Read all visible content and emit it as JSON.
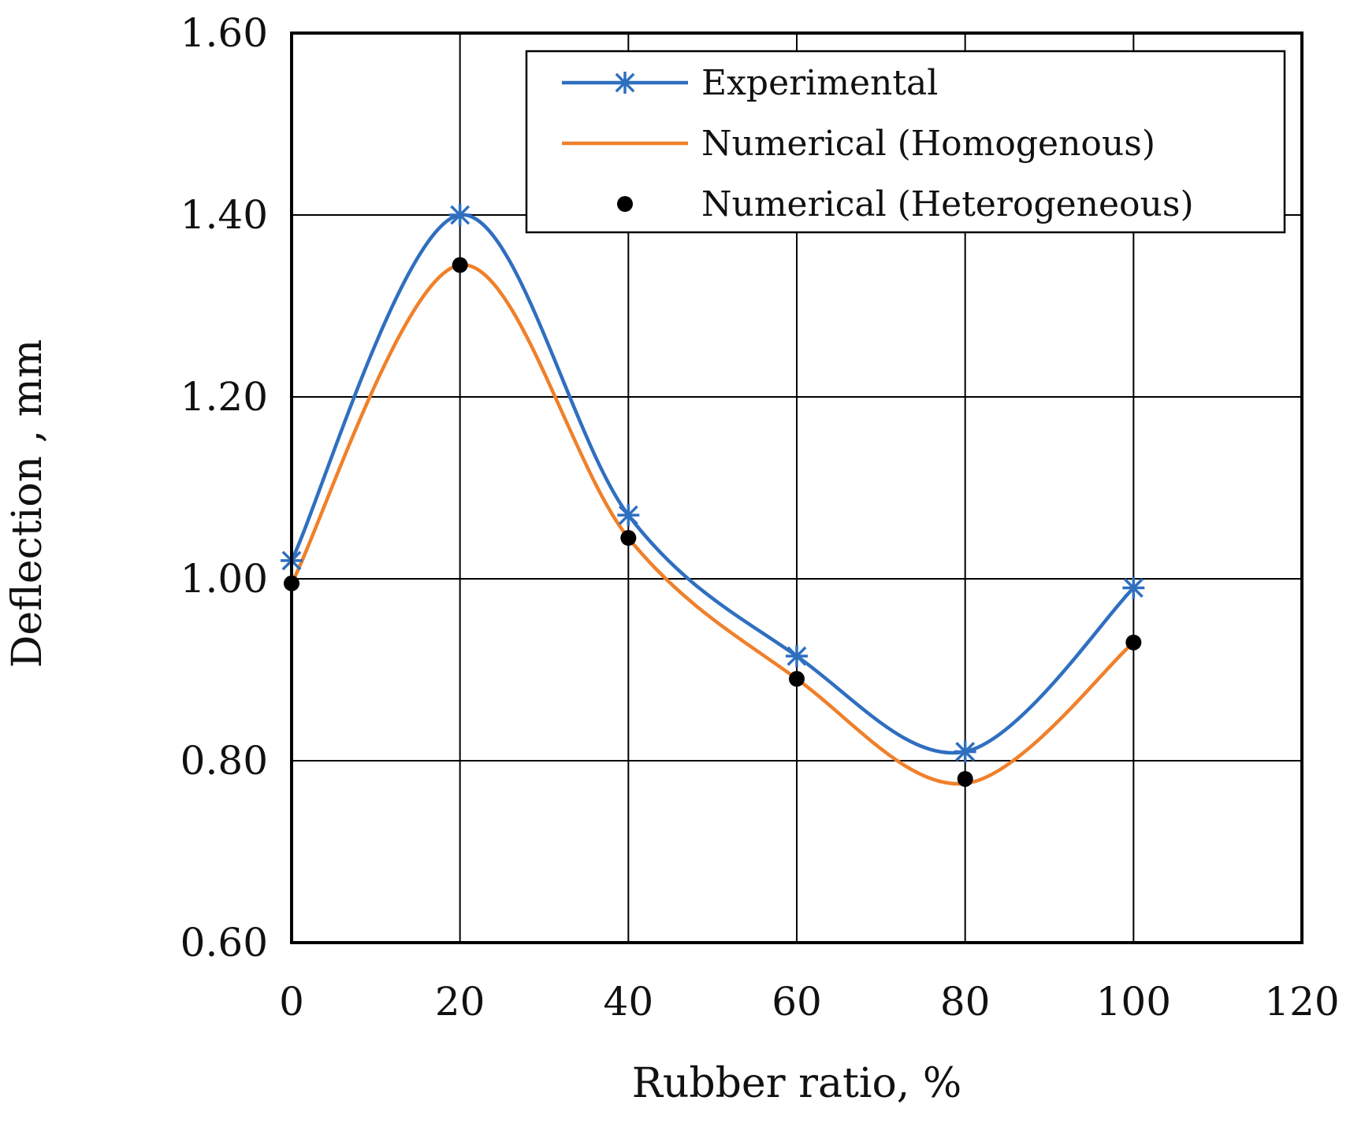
{
  "chart_data": {
    "type": "line",
    "title": "",
    "xlabel": "Rubber ratio, %",
    "ylabel": "Deflection , mm",
    "xlim": [
      0,
      120
    ],
    "ylim": [
      0.6,
      1.6
    ],
    "grid": true,
    "x_ticks": [
      0,
      20,
      40,
      60,
      80,
      100,
      120
    ],
    "x_tick_labels": [
      "0",
      "20",
      "40",
      "60",
      "80",
      "100",
      "120"
    ],
    "y_ticks": [
      0.6,
      0.8,
      1.0,
      1.2,
      1.4,
      1.6
    ],
    "y_tick_labels": [
      "0.60",
      "0.80",
      "1.00",
      "1.20",
      "1.40",
      "1.60"
    ],
    "legend_position": "top-right",
    "x": [
      0,
      20,
      40,
      60,
      80,
      100
    ],
    "series": [
      {
        "name": "Experimental",
        "style": "line-star",
        "color": "#2f6fc0",
        "values": [
          1.02,
          1.4,
          1.07,
          0.915,
          0.81,
          0.99
        ]
      },
      {
        "name": "Numerical (Homogenous)",
        "style": "line",
        "color": "#f0802a",
        "values": [
          0.995,
          1.345,
          1.045,
          0.89,
          0.775,
          0.93
        ]
      },
      {
        "name": "Numerical (Heterogeneous)",
        "style": "marker-dot",
        "color": "#000000",
        "values": [
          0.995,
          1.345,
          1.045,
          0.89,
          0.78,
          0.93
        ]
      }
    ]
  }
}
